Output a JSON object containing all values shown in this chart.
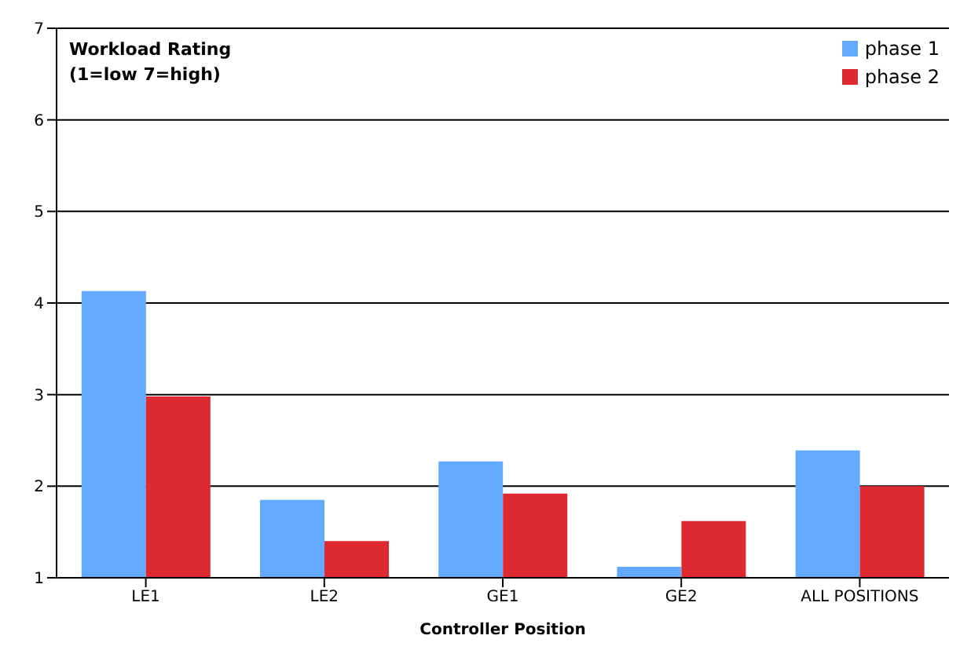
{
  "chart_data": {
    "type": "bar",
    "title": "Workload Rating\n(1=low 7=high)",
    "xlabel": "Controller Position",
    "categories": [
      "LE1",
      "LE2",
      "GE1",
      "GE2",
      "ALL POSITIONS"
    ],
    "series": [
      {
        "name": "phase 1",
        "color": "#62a9ff",
        "values": [
          4.13,
          1.85,
          2.27,
          1.12,
          2.39
        ]
      },
      {
        "name": "phase 2",
        "color": "#dc2a30",
        "values": [
          2.98,
          1.4,
          1.92,
          1.62,
          2.0
        ]
      }
    ],
    "ylim": [
      1,
      7
    ],
    "yticks": [
      1,
      2,
      3,
      4,
      5,
      6,
      7
    ],
    "grid": "y",
    "legend": "top right"
  }
}
